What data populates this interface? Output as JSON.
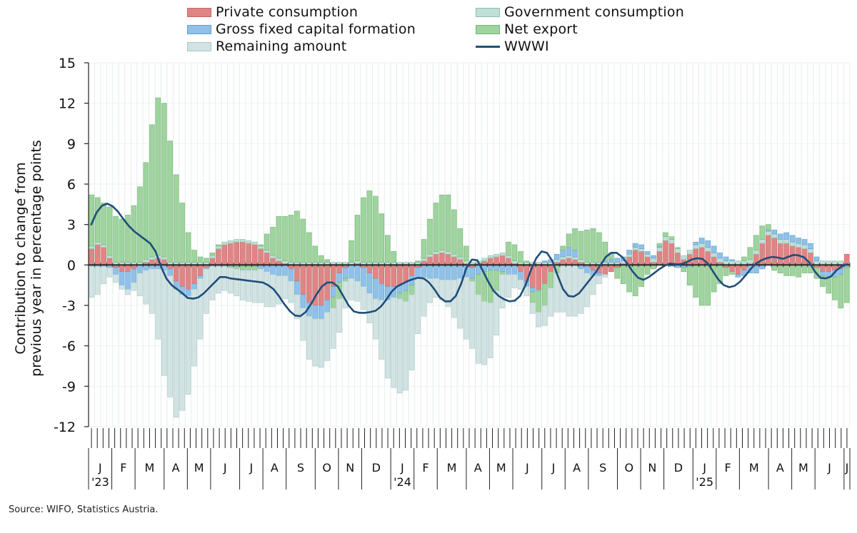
{
  "legend": [
    {
      "key": "private",
      "label": "Private consumption",
      "color": "#e08585",
      "border": "#c66868"
    },
    {
      "key": "gov",
      "label": "Government consumption",
      "color": "#bfe0d7",
      "border": "#8cbcae"
    },
    {
      "key": "gfcf",
      "label": "Gross fixed capital formation",
      "color": "#8fc1ea",
      "border": "#5f9fd1"
    },
    {
      "key": "net",
      "label": "Net export",
      "color": "#9fd49f",
      "border": "#74b474"
    },
    {
      "key": "rem",
      "label": "Remaining amount",
      "color": "#d2e3e3",
      "border": "#aac6c6"
    },
    {
      "key": "wwwi",
      "label": "WWWI",
      "color": "#1f4e79",
      "type": "line"
    }
  ],
  "y_axis_label_line1": "Contribution to change from",
  "y_axis_label_line2": "previous year in percentage points",
  "source": "Source: WIFO, Statistics Austria.",
  "chart_data": {
    "type": "bar",
    "stacked": true,
    "ylim": [
      -12,
      15
    ],
    "yticks": [
      15,
      12,
      9,
      6,
      3,
      0,
      -3,
      -6,
      -9,
      -12
    ],
    "month_labels": [
      "J",
      "F",
      "M",
      "A",
      "M",
      "J",
      "J",
      "A",
      "S",
      "O",
      "N",
      "D",
      "J",
      "F",
      "M",
      "A",
      "M",
      "J",
      "J",
      "A",
      "S",
      "O",
      "N",
      "D",
      "J",
      "F",
      "M",
      "A",
      "M",
      "J",
      "J"
    ],
    "year_labels": [
      {
        "month_index": 0,
        "label": "'23"
      },
      {
        "month_index": 12,
        "label": "'24"
      },
      {
        "month_index": 24,
        "label": "'25"
      }
    ],
    "weeks_per_month": [
      4,
      4,
      5,
      4,
      4,
      5,
      4,
      4,
      5,
      4,
      4,
      5,
      4,
      4,
      5,
      4,
      4,
      5,
      4,
      4,
      5,
      4,
      4,
      5,
      4,
      4,
      5,
      4,
      4,
      5,
      1
    ],
    "series": [
      {
        "name": "Private consumption",
        "key": "private",
        "values": [
          1.2,
          1.5,
          1.3,
          0.5,
          -0.2,
          -0.5,
          -0.5,
          -0.3,
          0,
          0.2,
          0.4,
          0.5,
          0.4,
          -0.3,
          -1.2,
          -1.6,
          -1.8,
          -1.4,
          -0.8,
          -0.2,
          0.5,
          1.2,
          1.5,
          1.6,
          1.7,
          1.7,
          1.6,
          1.5,
          1.2,
          0.9,
          0.5,
          0.3,
          0.1,
          -0.3,
          -1.2,
          -2.2,
          -2.8,
          -3,
          -3,
          -2.6,
          -1.6,
          -0.6,
          -0.2,
          0,
          0.1,
          -0.2,
          -0.6,
          -1.0,
          -1.4,
          -1.6,
          -1.6,
          -1.5,
          -1.3,
          -0.8,
          -0.2,
          0.3,
          0.6,
          0.8,
          0.9,
          0.8,
          0.6,
          0.4,
          0.1,
          -0.2,
          0.1,
          0.3,
          0.5,
          0.6,
          0.7,
          0.5,
          0.1,
          -0.5,
          -1.2,
          -1.7,
          -1.8,
          -1.4,
          -0.5,
          0.2,
          0.4,
          0.5,
          0.4,
          0.2,
          -0.1,
          -0.4,
          -0.6,
          -0.7,
          -0.5,
          -0.2,
          0.1,
          0.6,
          1.1,
          1.0,
          0.6,
          0.2,
          1.0,
          1.8,
          1.6,
          0.9,
          0.4,
          0.8,
          1.2,
          1.3,
          1.0,
          0.6,
          0.2,
          -0.2,
          -0.5,
          -0.7,
          -0.4,
          0.1,
          0.8,
          1.6,
          2.2,
          2.0,
          1.6,
          1.6,
          1.4,
          1.3,
          1.2,
          0.9,
          -0.2,
          -0.5,
          -0.5,
          -0.4,
          -0.3,
          0.8
        ]
      },
      {
        "name": "Government consumption",
        "key": "gov",
        "values": [
          0.2,
          0.2,
          0.2,
          0.2,
          0.2,
          0.2,
          0.2,
          0.2,
          0.2,
          0.2,
          0.2,
          0.2,
          0.2,
          0.2,
          0.2,
          0.2,
          0.2,
          0.2,
          0.2,
          0.2,
          0.2,
          0.2,
          0.2,
          0.2,
          0.2,
          0.2,
          0.2,
          0.2,
          0.2,
          0.2,
          0.2,
          0.2,
          0.2,
          0.2,
          0.2,
          0.2,
          0.2,
          0.2,
          0.2,
          0.2,
          0.2,
          0.2,
          0.2,
          0.2,
          0.2,
          0.2,
          0.2,
          0.2,
          0.2,
          0.2,
          0.2,
          0.2,
          0.2,
          0.2,
          0.2,
          0.2,
          0.2,
          0.2,
          0.2,
          0.2,
          0.2,
          0.2,
          0.2,
          0.2,
          0.2,
          0.2,
          0.2,
          0.2,
          0.2,
          0.2,
          0.2,
          0.2,
          0.2,
          0.2,
          0.2,
          0.2,
          0.2,
          0.2,
          0.2,
          0.2,
          0.2,
          0.2,
          0.2,
          0.2,
          0.2,
          0.2,
          0.2,
          0.2,
          0.2,
          0.2,
          0.2,
          0.2,
          0.2,
          0.3,
          0.3,
          0.3,
          0.3,
          0.3,
          0.3,
          0.3,
          0.3,
          0.3,
          0.3,
          0.3,
          0.3,
          0.3,
          0.3,
          0.3,
          0.3,
          0.3,
          0.3,
          0.3,
          0.3,
          0.3,
          0.3,
          0.3,
          0.3,
          0.3,
          0.3,
          0.3,
          0.3,
          0.3,
          0.3,
          0.3,
          0.3
        ]
      },
      {
        "name": "Gross fixed capital formation",
        "key": "gfcf",
        "values": [
          -0.1,
          -0.1,
          -0.1,
          -0.2,
          -0.5,
          -1.0,
          -1.3,
          -1.0,
          -0.6,
          -0.4,
          -0.3,
          -0.3,
          -0.4,
          -0.5,
          -0.6,
          -0.6,
          -0.5,
          -0.4,
          -0.2,
          -0.1,
          -0.1,
          -0.1,
          -0.1,
          -0.1,
          -0.1,
          -0.1,
          -0.1,
          -0.1,
          -0.3,
          -0.5,
          -0.7,
          -0.8,
          -0.8,
          -0.9,
          -1.0,
          -1.0,
          -1.0,
          -1.0,
          -1.0,
          -0.9,
          -0.8,
          -0.7,
          -0.8,
          -1.0,
          -1.2,
          -1.4,
          -1.5,
          -1.5,
          -1.2,
          -1.0,
          -0.8,
          -0.6,
          -0.6,
          -0.7,
          -0.8,
          -0.9,
          -1.0,
          -1.0,
          -1.1,
          -1.1,
          -1.1,
          -1.0,
          -0.9,
          -0.8,
          -0.7,
          -0.5,
          -0.4,
          -0.4,
          -0.5,
          -0.7,
          -0.7,
          -0.6,
          -0.4,
          -0.3,
          -0.1,
          0.1,
          0.2,
          0.4,
          0.5,
          0.6,
          0.5,
          -0.3,
          -0.5,
          -0.4,
          -0.2,
          0.1,
          0.2,
          0.3,
          0.3,
          0.3,
          0.3,
          0.3,
          0.2,
          0.2,
          0.1,
          0,
          -0.1,
          -0.2,
          -0.2,
          -0.1,
          0.2,
          0.4,
          0.5,
          0.5,
          0.4,
          0.3,
          0.1,
          -0.2,
          -0.4,
          -0.6,
          -0.6,
          -0.3,
          0.1,
          0.3,
          0.4,
          0.5,
          0.5,
          0.4,
          0.4,
          0.4,
          0.3,
          -0.3,
          -0.4,
          -0.5,
          -0.4,
          -0.2,
          0.2
        ]
      },
      {
        "name": "Net export",
        "key": "net",
        "values": [
          3.8,
          3.3,
          3.1,
          3.6,
          3.4,
          3.2,
          3.5,
          4.2,
          5.6,
          7.2,
          9.8,
          11.7,
          11.4,
          9.0,
          6.5,
          4.4,
          2.2,
          0.9,
          0.4,
          0.3,
          0.2,
          0.1,
          0,
          -0.1,
          -0.2,
          -0.3,
          -0.3,
          -0.3,
          0.1,
          1.2,
          2.1,
          3.1,
          3.3,
          3.5,
          3.8,
          3.2,
          2.2,
          1.2,
          0.5,
          0.2,
          -0.8,
          -1.2,
          -0.2,
          1.6,
          3.4,
          4.8,
          5.3,
          4.9,
          3.6,
          2.0,
          0.8,
          -0.4,
          -0.8,
          -0.7,
          0.1,
          1.4,
          2.6,
          3.6,
          4.1,
          4.2,
          3.3,
          2.1,
          1.1,
          -0.2,
          -1.5,
          -2.2,
          -2.4,
          -1.5,
          -0.2,
          1.0,
          1.2,
          0.8,
          0.1,
          -0.8,
          -1.6,
          -1.6,
          -1.2,
          -0.6,
          0.3,
          1.0,
          1.6,
          2.1,
          2.4,
          2.5,
          2.2,
          1.4,
          0.5,
          -0.8,
          -1.4,
          -2.0,
          -2.3,
          -1.6,
          -0.7,
          -0.3,
          0.2,
          0.3,
          0.2,
          0.1,
          -0.3,
          -1.4,
          -2.4,
          -3.0,
          -3.0,
          -2.0,
          -1.4,
          -0.6,
          -0.2,
          0,
          0.3,
          0.9,
          1.1,
          1.0,
          0.4,
          -0.4,
          -0.6,
          -0.8,
          -0.8,
          -0.9,
          -0.6,
          -0.6,
          -0.8,
          -0.8,
          -1.2,
          -1.7,
          -2.5,
          -2.6,
          -2.3,
          -1.8
        ]
      },
      {
        "name": "Remaining amount",
        "key": "rem",
        "values": [
          -2.3,
          -2.1,
          -1.3,
          -0.7,
          -0.6,
          -0.3,
          -0.4,
          -0.6,
          -1.7,
          -2.5,
          -3.3,
          -5.2,
          -7.8,
          -9.0,
          -9.5,
          -8.6,
          -7.3,
          -5.7,
          -4.5,
          -3.3,
          -2.5,
          -2.0,
          -1.8,
          -1.9,
          -2.0,
          -2.2,
          -2.3,
          -2.4,
          -2.5,
          -2.6,
          -2.4,
          -2.1,
          -1.7,
          -1.6,
          -1.8,
          -2.4,
          -3.2,
          -3.5,
          -3.6,
          -3.6,
          -3.0,
          -2.5,
          -2.0,
          -1.6,
          -1.5,
          -1.7,
          -2.2,
          -3.0,
          -4.4,
          -5.8,
          -6.7,
          -7.0,
          -6.6,
          -5.6,
          -4.1,
          -2.9,
          -1.8,
          -1.4,
          -1.5,
          -2.0,
          -2.8,
          -3.7,
          -4.6,
          -5.0,
          -5.1,
          -4.7,
          -4.1,
          -3.3,
          -2.5,
          -1.7,
          -1.0,
          -0.7,
          -0.7,
          -0.8,
          -1.1,
          -1.5,
          -2.1,
          -2.9,
          -3.5,
          -3.8,
          -3.8,
          -3.3,
          -2.5,
          -1.4,
          -0.6,
          -0.2,
          0,
          0,
          0,
          0,
          0,
          0,
          0,
          0,
          0,
          0,
          0,
          0,
          0,
          0,
          0,
          0,
          0,
          0,
          0,
          0,
          0,
          0,
          0,
          0,
          0,
          0,
          0,
          0,
          0,
          0,
          0,
          0,
          0,
          0,
          0,
          0,
          0,
          0,
          0,
          0
        ]
      },
      {
        "name": "WWWI",
        "key": "wwwi",
        "type": "line",
        "values": [
          3.0,
          3.9,
          4.4,
          4.55,
          4.35,
          3.95,
          3.4,
          2.9,
          2.5,
          2.2,
          1.9,
          1.6,
          1.0,
          -0.1,
          -1.0,
          -1.5,
          -1.8,
          -2.1,
          -2.45,
          -2.5,
          -2.4,
          -2.1,
          -1.7,
          -1.3,
          -0.9,
          -0.9,
          -1.0,
          -1.05,
          -1.1,
          -1.15,
          -1.2,
          -1.25,
          -1.3,
          -1.5,
          -1.8,
          -2.3,
          -2.9,
          -3.4,
          -3.75,
          -3.8,
          -3.5,
          -2.9,
          -2.2,
          -1.6,
          -1.3,
          -1.3,
          -1.6,
          -2.3,
          -3.0,
          -3.45,
          -3.55,
          -3.55,
          -3.5,
          -3.4,
          -3.1,
          -2.6,
          -2.0,
          -1.6,
          -1.4,
          -1.2,
          -1.05,
          -0.95,
          -1.0,
          -1.3,
          -1.8,
          -2.4,
          -2.7,
          -2.7,
          -2.3,
          -1.4,
          -0.2,
          0.4,
          0.35,
          -0.4,
          -1.2,
          -1.9,
          -2.3,
          -2.55,
          -2.7,
          -2.65,
          -2.3,
          -1.5,
          -0.4,
          0.5,
          1.0,
          0.9,
          0.3,
          -0.8,
          -1.8,
          -2.3,
          -2.35,
          -2.1,
          -1.6,
          -1.1,
          -0.6,
          0,
          0.6,
          0.9,
          0.9,
          0.6,
          0.1,
          -0.5,
          -0.95,
          -1.1,
          -0.9,
          -0.6,
          -0.3,
          -0.05,
          0.1,
          0.05,
          0.05,
          0.2,
          0.4,
          0.5,
          0.45,
          0.1,
          -0.5,
          -1.1,
          -1.5,
          -1.65,
          -1.55,
          -1.25,
          -0.8,
          -0.3,
          0.1,
          0.35,
          0.5,
          0.6,
          0.55,
          0.45,
          0.6,
          0.75,
          0.7,
          0.55,
          0.15,
          -0.5,
          -0.95,
          -1.0,
          -0.85,
          -0.4,
          -0.1,
          0.05
        ]
      }
    ]
  }
}
